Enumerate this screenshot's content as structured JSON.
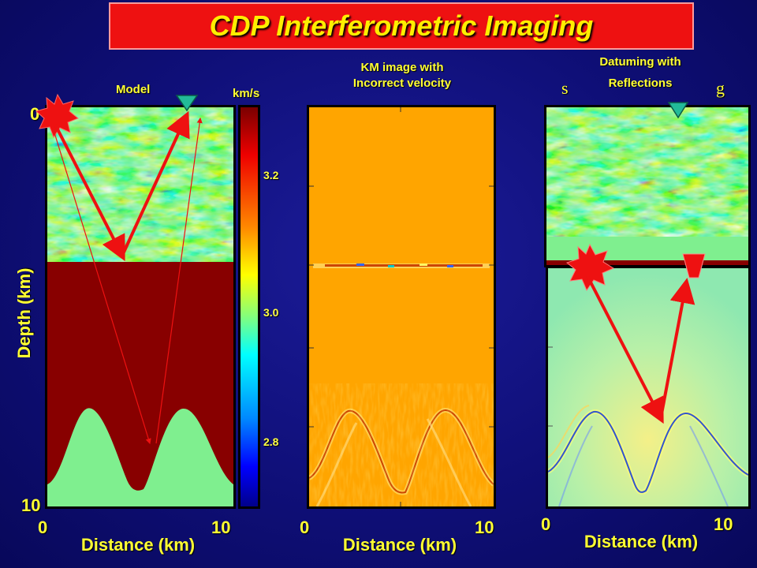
{
  "title": "CDP Interferometric Imaging",
  "left_panel": {
    "label": "Model",
    "unit_label": "km/s",
    "ylabel": "Depth (km)",
    "xlabel": "Distance (km)",
    "x_ticks": [
      "0",
      "10"
    ],
    "y_ticks": [
      "0",
      "10"
    ]
  },
  "colorbar": {
    "ticks": [
      "3.2",
      "3.0",
      "2.8"
    ]
  },
  "middle_panel": {
    "label_line1": "KM image with",
    "label_line2": "Incorrect velocity",
    "xlabel": "Distance (km)",
    "x_ticks": [
      "0",
      "10"
    ]
  },
  "right_panel": {
    "label_line1": "Datuming with",
    "label_line2": "Reflections",
    "source_letter": "s",
    "receiver_letter": "g",
    "xlabel": "Distance (km)",
    "x_ticks": [
      "0",
      "10"
    ]
  },
  "colors": {
    "background": "#0f0f78",
    "title_box": "#ee1111",
    "title_text": "#ffee00",
    "label_text": "#ffff33",
    "model_lower": "#880000",
    "model_base": "#7fef8f",
    "image_bg": "#ffa500",
    "ray": "#ee1111",
    "receiver": "#22bb99"
  }
}
